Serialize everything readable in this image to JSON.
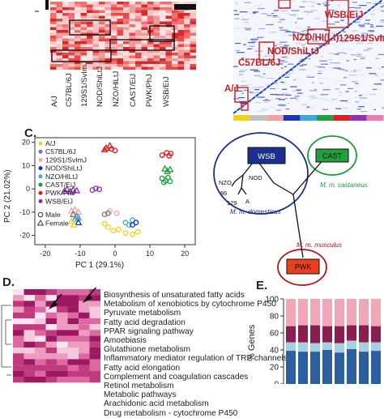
{
  "panel_c": {
    "letter": "C.",
    "legend": [
      {
        "name": "A/J",
        "color": "#f2d21a",
        "marker": "circle"
      },
      {
        "name": "C57BL/6J",
        "color": "#7a7a7a",
        "marker": "circle"
      },
      {
        "name": "129S1/SvImJ",
        "color": "#f2a6a6",
        "marker": "circle"
      },
      {
        "name": "NOD/ShiLtJ",
        "color": "#1433b8",
        "marker": "circle"
      },
      {
        "name": "NZO/HlLtJ",
        "color": "#44a8e0",
        "marker": "circle"
      },
      {
        "name": "CAST/EiJ",
        "color": "#1d9e3a",
        "marker": "circle"
      },
      {
        "name": "PWK/PhJ",
        "color": "#e11b1b",
        "marker": "circle"
      },
      {
        "name": "WSB/EiJ",
        "color": "#8a2bb0",
        "marker": "circle"
      }
    ],
    "sex_legend": [
      {
        "name": "Male",
        "marker": "circle"
      },
      {
        "name": "Female",
        "marker": "triangle"
      }
    ],
    "chart_data": {
      "type": "scatter",
      "xlabel": "PC 1 (29.1%)",
      "ylabel": "PC 2 (21.02%)",
      "xlim": [
        -23,
        23
      ],
      "ylim": [
        -24,
        22
      ],
      "xticks": [
        -20,
        -10,
        0,
        10,
        20
      ],
      "yticks": [
        -20,
        -10,
        0,
        10,
        20
      ],
      "points": [
        {
          "strain": "PWK/PhJ",
          "sex": "female",
          "x": -2.5,
          "y": 17.5
        },
        {
          "strain": "PWK/PhJ",
          "sex": "female",
          "x": -1.5,
          "y": 18.5
        },
        {
          "strain": "PWK/PhJ",
          "sex": "female",
          "x": -3,
          "y": 16.8
        },
        {
          "strain": "PWK/PhJ",
          "sex": "male",
          "x": -1,
          "y": 17.2
        },
        {
          "strain": "PWK/PhJ",
          "sex": "male",
          "x": 0,
          "y": 16.5
        },
        {
          "strain": "PWK/PhJ",
          "sex": "male",
          "x": 13.5,
          "y": 14.5
        },
        {
          "strain": "PWK/PhJ",
          "sex": "male",
          "x": 14.8,
          "y": 15.5
        },
        {
          "strain": "PWK/PhJ",
          "sex": "male",
          "x": 15.5,
          "y": 14.2
        },
        {
          "strain": "PWK/PhJ",
          "sex": "male",
          "x": 16,
          "y": 15.2
        },
        {
          "strain": "CAST/EiJ",
          "sex": "male",
          "x": 13.5,
          "y": 4.5
        },
        {
          "strain": "CAST/EiJ",
          "sex": "male",
          "x": 14.5,
          "y": 3.5
        },
        {
          "strain": "CAST/EiJ",
          "sex": "male",
          "x": 15.2,
          "y": 4.8
        },
        {
          "strain": "CAST/EiJ",
          "sex": "male",
          "x": 14,
          "y": 2.8
        },
        {
          "strain": "CAST/EiJ",
          "sex": "male",
          "x": 15.8,
          "y": 3.2
        },
        {
          "strain": "CAST/EiJ",
          "sex": "female",
          "x": 15,
          "y": 7.5
        },
        {
          "strain": "CAST/EiJ",
          "sex": "female",
          "x": 15.8,
          "y": 8.3
        },
        {
          "strain": "CAST/EiJ",
          "sex": "female",
          "x": 14.3,
          "y": 8.6
        },
        {
          "strain": "WSB/EiJ",
          "sex": "female",
          "x": -14.5,
          "y": -1
        },
        {
          "strain": "WSB/EiJ",
          "sex": "female",
          "x": -13.8,
          "y": -0.2
        },
        {
          "strain": "WSB/EiJ",
          "sex": "female",
          "x": -12.8,
          "y": -1.2
        },
        {
          "strain": "WSB/EiJ",
          "sex": "female",
          "x": -12,
          "y": -0.5
        },
        {
          "strain": "WSB/EiJ",
          "sex": "female",
          "x": -11,
          "y": -0.8
        },
        {
          "strain": "WSB/EiJ",
          "sex": "male",
          "x": -6.5,
          "y": -0.5
        },
        {
          "strain": "WSB/EiJ",
          "sex": "male",
          "x": -5.5,
          "y": 0.2
        },
        {
          "strain": "WSB/EiJ",
          "sex": "male",
          "x": -4.5,
          "y": -0.2
        },
        {
          "strain": "129S1/SvImJ",
          "sex": "female",
          "x": -12.5,
          "y": -9.5
        },
        {
          "strain": "129S1/SvImJ",
          "sex": "female",
          "x": -11.5,
          "y": -9
        },
        {
          "strain": "129S1/SvImJ",
          "sex": "female",
          "x": -10.5,
          "y": -10
        },
        {
          "strain": "129S1/SvImJ",
          "sex": "male",
          "x": -1.5,
          "y": -9.5
        },
        {
          "strain": "129S1/SvImJ",
          "sex": "male",
          "x": 0.5,
          "y": -10.5
        },
        {
          "strain": "C57BL/6J",
          "sex": "female",
          "x": -12,
          "y": -11
        },
        {
          "strain": "C57BL/6J",
          "sex": "female",
          "x": -11,
          "y": -11.8
        },
        {
          "strain": "C57BL/6J",
          "sex": "male",
          "x": -3,
          "y": -11
        },
        {
          "strain": "C57BL/6J",
          "sex": "male",
          "x": -2,
          "y": -10.5
        },
        {
          "strain": "NZO/HlLtJ",
          "sex": "female",
          "x": -11.5,
          "y": -13
        },
        {
          "strain": "NZO/HlLtJ",
          "sex": "female",
          "x": -10.5,
          "y": -12.5
        },
        {
          "strain": "NZO/HlLtJ",
          "sex": "male",
          "x": 3,
          "y": -14.5
        },
        {
          "strain": "NZO/HlLtJ",
          "sex": "male",
          "x": 4,
          "y": -15.5
        },
        {
          "strain": "NZO/HlLtJ",
          "sex": "male",
          "x": 5,
          "y": -13.5
        },
        {
          "strain": "NOD/ShiLtJ",
          "sex": "female",
          "x": -10.5,
          "y": -14.5
        },
        {
          "strain": "NOD/ShiLtJ",
          "sex": "male",
          "x": 5,
          "y": -15.5
        },
        {
          "strain": "NOD/ShiLtJ",
          "sex": "male",
          "x": 6,
          "y": -14.5
        },
        {
          "strain": "A/J",
          "sex": "female",
          "x": -12.5,
          "y": -14
        },
        {
          "strain": "A/J",
          "sex": "female",
          "x": -11.8,
          "y": -15.5
        },
        {
          "strain": "A/J",
          "sex": "male",
          "x": -3,
          "y": -15
        },
        {
          "strain": "A/J",
          "sex": "male",
          "x": -2,
          "y": -16.5
        },
        {
          "strain": "A/J",
          "sex": "male",
          "x": -0.5,
          "y": -18
        },
        {
          "strain": "A/J",
          "sex": "male",
          "x": 1,
          "y": -17.5
        },
        {
          "strain": "A/J",
          "sex": "male",
          "x": 3,
          "y": -19
        },
        {
          "strain": "A/J",
          "sex": "male",
          "x": 5,
          "y": -19.5
        },
        {
          "strain": "A/J",
          "sex": "male",
          "x": 6.5,
          "y": -18.5
        }
      ]
    }
  },
  "panel_a_strains": [
    "A/J",
    "C57BL/6J",
    "129S1/SvImJ",
    "NOD/ShiLtJ",
    "NZO/HlLtJ",
    "CAST/EiJ",
    "PWK/PhJ",
    "WSB/EiJ"
  ],
  "panel_b": {
    "labels": [
      "WSB/EiJ",
      "NZO/HI(Lt)",
      "NOD/ShiLtJ",
      "129S1/SvImJ",
      "C57BL/6J",
      "A/J"
    ],
    "colorbar": [
      "#f4d21c",
      "#c0c0c0",
      "#f2a0a0",
      "#1a34c0",
      "#3aa8e2",
      "#22a03c",
      "#e41c1c",
      "#9430b8",
      "#f07ab0"
    ]
  },
  "tree": {
    "groups": [
      "WSB",
      "CAST",
      "PWK"
    ],
    "small_labels": [
      "NOD",
      "NZO",
      "86",
      "129",
      "A"
    ],
    "subspecies": [
      "M. m. domesticus",
      "M. m. castaneus",
      "M. m. musculus"
    ],
    "colors": {
      "domesticus": "#1b2f8f",
      "castaneus": "#1f9a3a",
      "musculus": "#b01818"
    }
  },
  "panel_d": {
    "letter": "D.",
    "pathways": [
      "Biosynthesis of unsaturated fatty acids",
      "Metabolism of xenobiotics by cytochrome P450",
      "Pyruvate metabolism",
      "Fatty acid degradation",
      "PPAR signaling pathway",
      "Amoebiasis",
      "Glutathione metabolism",
      "Inflammatory mediator regulation of TRP channels",
      "Fatty acid elongation",
      "Complement and coagulation cascades",
      "Retinol metabolism",
      "Metabolic pathways",
      "Arachidonic acid metabolism",
      "Drug metabolism - cytochrome P450"
    ]
  },
  "panel_e": {
    "letter": "E.",
    "chart_data": {
      "type": "bar",
      "stacked": true,
      "ylabel": "% Genes",
      "ylim": [
        0,
        100
      ],
      "yticks": [
        0,
        20,
        40,
        60,
        80,
        100
      ],
      "n_bars": 8,
      "series": [
        {
          "color": "#2d5fa0",
          "values": [
            39,
            38,
            38,
            40,
            37,
            41,
            38,
            39
          ]
        },
        {
          "color": "#a8cfe0",
          "values": [
            10,
            11,
            10,
            9,
            11,
            10,
            11,
            10
          ]
        },
        {
          "color": "#8a1f4f",
          "values": [
            19,
            20,
            21,
            19,
            20,
            18,
            20,
            19
          ]
        },
        {
          "color": "#f2a7b8",
          "values": [
            32,
            31,
            31,
            32,
            32,
            31,
            31,
            32
          ]
        }
      ]
    }
  }
}
